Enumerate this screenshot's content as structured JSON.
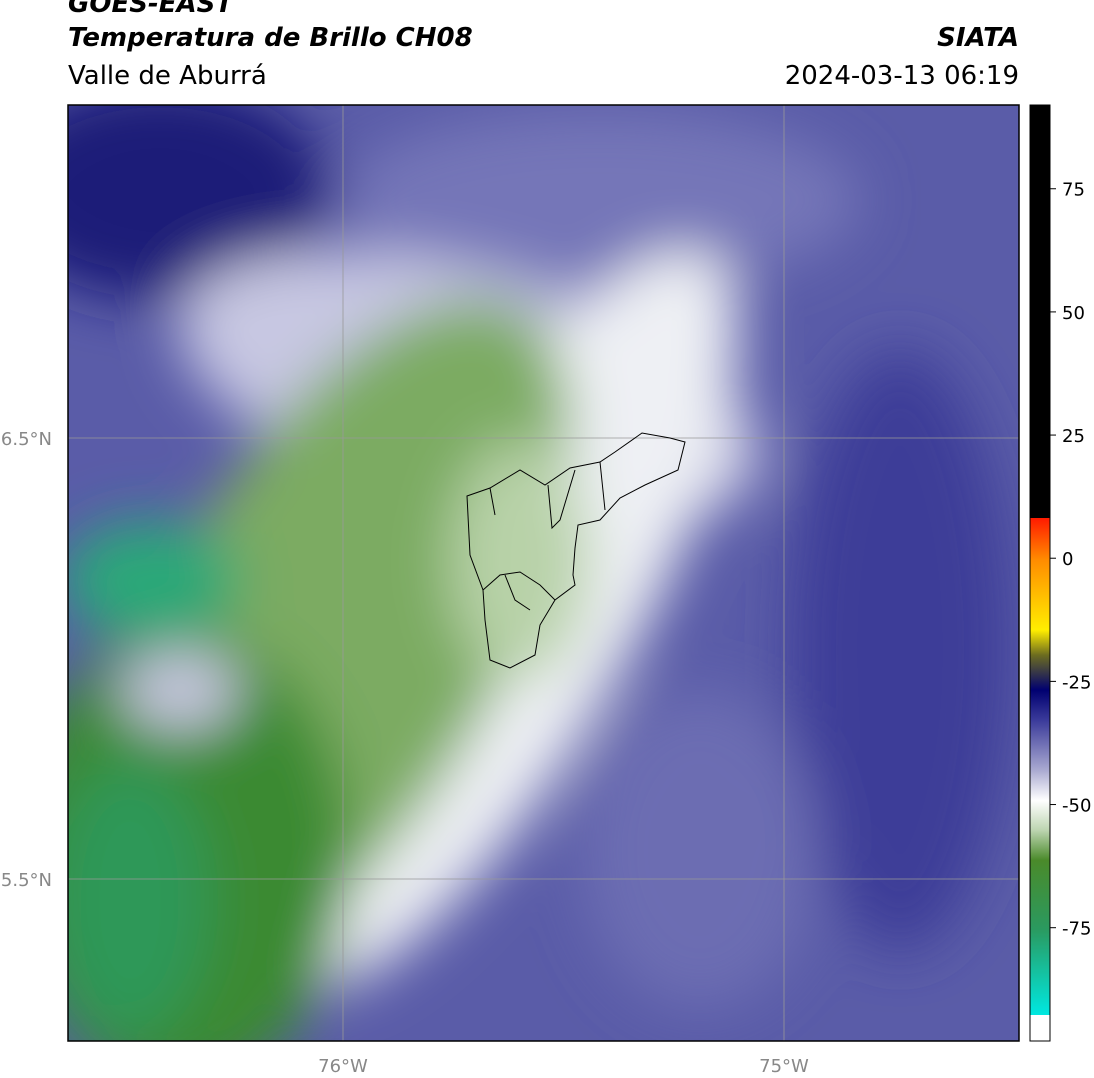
{
  "header": {
    "title": "GOES-EAST",
    "subtitle": "Temperatura de Brillo CH08",
    "region": "Valle de Aburrá",
    "source": "SIATA",
    "timestamp": "2024-03-13 06:19"
  },
  "map": {
    "lat_labels": [
      "6.5°N",
      "5.5°N"
    ],
    "lon_labels": [
      "76°W",
      "75°W"
    ]
  },
  "colorbar": {
    "lim": [
      -98,
      92
    ],
    "ticks": [
      75,
      50,
      25,
      0,
      -25,
      -50,
      -75
    ]
  }
}
